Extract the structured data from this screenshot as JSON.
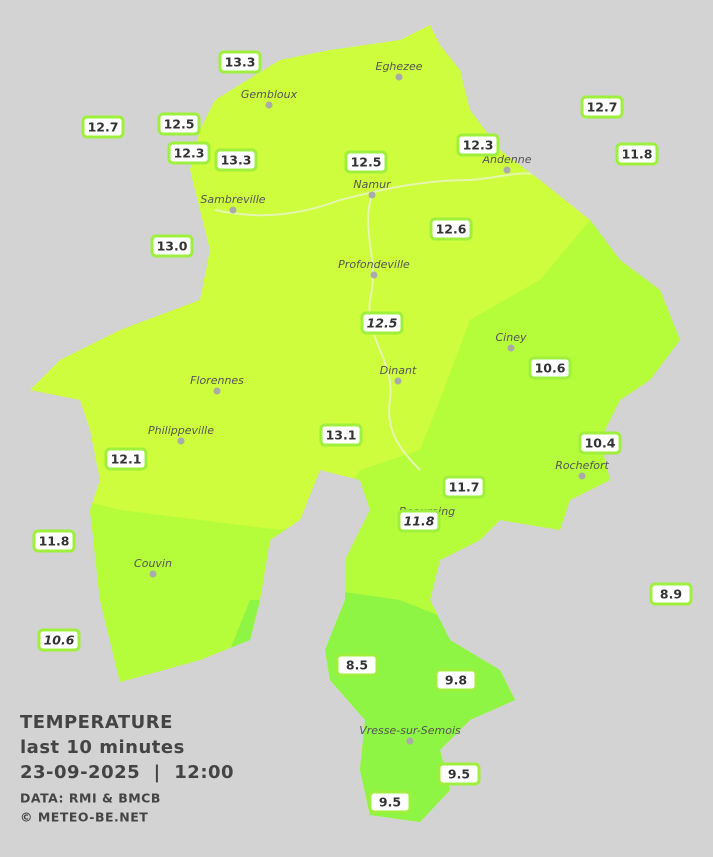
{
  "stations": [
    {
      "value": "13.3"
    },
    {
      "value": "12.5"
    },
    {
      "value": "12.7"
    },
    {
      "value": "12.3"
    },
    {
      "value": "13.3"
    },
    {
      "value": "12.5"
    },
    {
      "value": "12.3"
    },
    {
      "value": "12.7"
    },
    {
      "value": "11.8"
    },
    {
      "value": "13.0"
    },
    {
      "value": "12.6"
    },
    {
      "value": "12.5"
    },
    {
      "value": "10.6"
    },
    {
      "value": "13.1"
    },
    {
      "value": "10.4"
    },
    {
      "value": "12.1"
    },
    {
      "value": "11.7"
    },
    {
      "value": "11.8"
    },
    {
      "value": "11.8"
    },
    {
      "value": "8.9"
    },
    {
      "value": "10.6"
    },
    {
      "value": "8.5"
    },
    {
      "value": "9.8"
    },
    {
      "value": "9.5"
    },
    {
      "value": "9.5"
    }
  ],
  "cities": [
    "Eghezee",
    "Gembloux",
    "Andenne",
    "Sambreville",
    "Namur",
    "Profondeville",
    "Ciney",
    "Florennes",
    "Dinant",
    "Philippeville",
    "Rochefort",
    "Beauraing",
    "Couvin",
    "Vresse-sur-Semois"
  ],
  "legend": {
    "title": "TEMPERATURE",
    "period": "last 10 minutes",
    "timestamp": "23-09-2025  |  12:00",
    "source": "DATA: RMI & BMCB",
    "copyright": "© METEO-BE.NET"
  }
}
